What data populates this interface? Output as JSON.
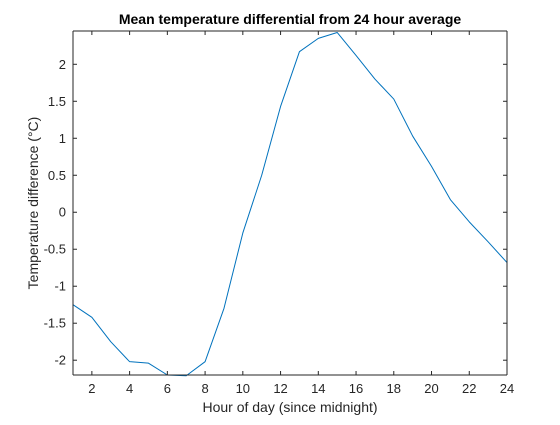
{
  "chart_data": {
    "type": "line",
    "title": "Mean temperature differential from 24 hour average",
    "xlabel": "Hour of day (since midnight)",
    "ylabel": "Temperature difference (°C)",
    "xlim": [
      1,
      24
    ],
    "ylim": [
      -2.2,
      2.45
    ],
    "xticks": [
      2,
      4,
      6,
      8,
      10,
      12,
      14,
      16,
      18,
      20,
      22,
      24
    ],
    "yticks": [
      -2,
      -1.5,
      -1,
      -0.5,
      0,
      0.5,
      1,
      1.5,
      2
    ],
    "grid": false,
    "box": true,
    "series": [
      {
        "color": "#0072BD",
        "x": [
          1,
          2,
          3,
          4,
          5,
          6,
          7,
          8,
          9,
          10,
          11,
          12,
          13,
          14,
          15,
          16,
          17,
          18,
          19,
          20,
          21,
          22,
          23,
          24
        ],
        "y": [
          -1.25,
          -1.42,
          -1.75,
          -2.02,
          -2.04,
          -2.2,
          -2.21,
          -2.02,
          -1.3,
          -0.28,
          0.5,
          1.43,
          2.17,
          2.35,
          2.43,
          2.12,
          1.8,
          1.53,
          1.03,
          0.62,
          0.17,
          -0.13,
          -0.4,
          -0.68
        ]
      }
    ]
  }
}
